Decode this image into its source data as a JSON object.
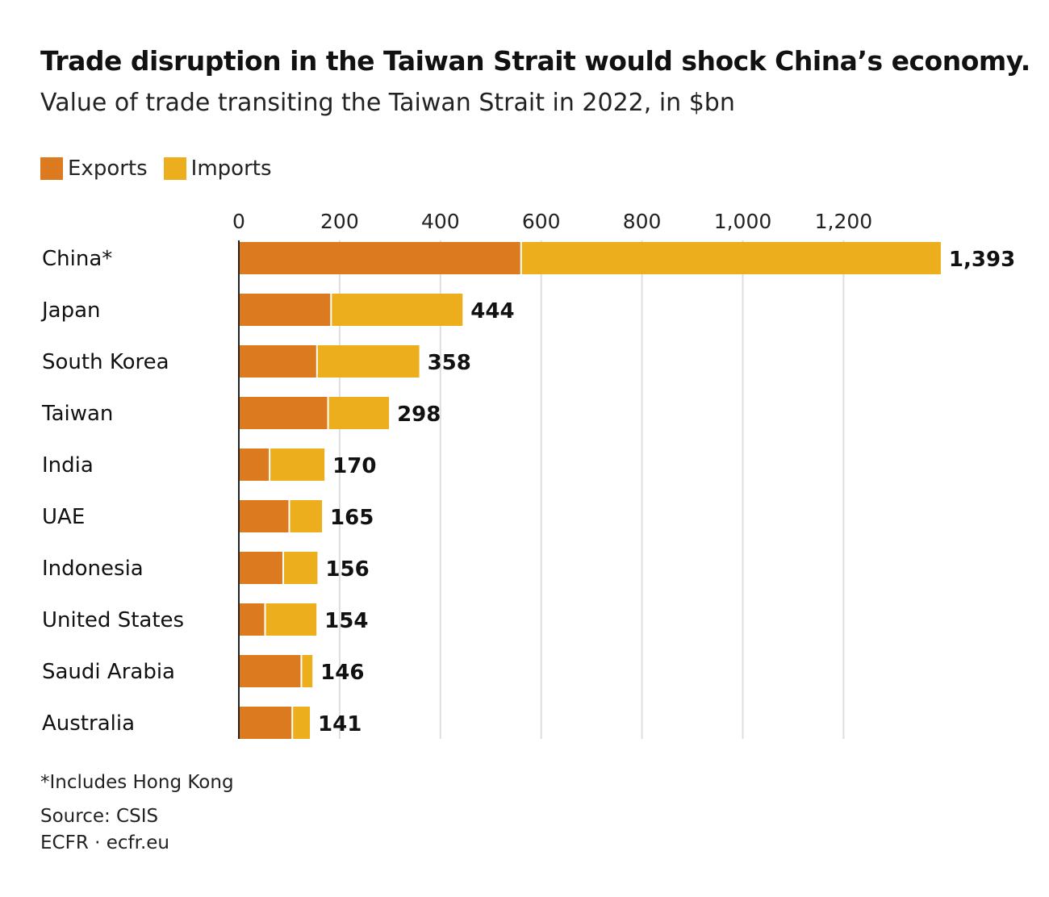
{
  "title": "Trade disruption in the Taiwan Strait would shock China’s economy.",
  "subtitle": "Value of trade transiting the Taiwan Strait in 2022, in $bn",
  "legend": [
    {
      "label": "Exports",
      "color": "#DB7A1E"
    },
    {
      "label": "Imports",
      "color": "#EDAE1D"
    }
  ],
  "footnotes": {
    "note": "*Includes Hong Kong",
    "source": "Source: CSIS",
    "credit": "ECFR · ecfr.eu"
  },
  "chart_data": {
    "type": "bar",
    "orientation": "horizontal",
    "stacked": true,
    "categories": [
      "China*",
      "Japan",
      "South Korea",
      "Taiwan",
      "India",
      "UAE",
      "Indonesia",
      "United States",
      "Saudi Arabia",
      "Australia"
    ],
    "series": [
      {
        "name": "Exports",
        "color": "#DB7A1E",
        "values": [
          560,
          183,
          155,
          177,
          61,
          100,
          88,
          52,
          124,
          106
        ]
      },
      {
        "name": "Imports",
        "color": "#EDAE1D",
        "values": [
          833,
          261,
          203,
          121,
          109,
          65,
          68,
          102,
          22,
          35
        ]
      }
    ],
    "totals": [
      1393,
      444,
      358,
      298,
      170,
      165,
      156,
      154,
      146,
      141
    ],
    "total_labels": [
      "1,393",
      "444",
      "358",
      "298",
      "170",
      "165",
      "156",
      "154",
      "146",
      "141"
    ],
    "x_ticks": [
      0,
      200,
      400,
      600,
      800,
      1000,
      1200
    ],
    "x_tick_labels": [
      "0",
      "200",
      "400",
      "600",
      "800",
      "1,000",
      "1,200"
    ],
    "xlim": [
      0,
      1393
    ],
    "axis_position": "top",
    "grid": true
  }
}
